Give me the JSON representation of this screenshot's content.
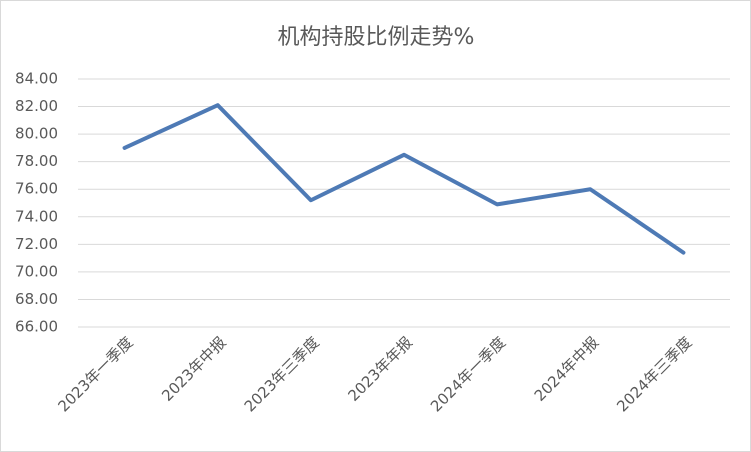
{
  "chart_data": {
    "type": "line",
    "title": "机构持股比例走势%",
    "categories": [
      "2023年一季度",
      "2023年中报",
      "2023年三季度",
      "2023年年报",
      "2024年一季度",
      "2024年中报",
      "2024年三季度"
    ],
    "series": [
      {
        "name": "机构持股比例",
        "color": "#4e7ab5",
        "values": [
          79.0,
          82.1,
          75.2,
          78.5,
          74.9,
          76.0,
          71.4
        ]
      }
    ],
    "ylim": [
      66,
      84
    ],
    "yticks": [
      {
        "value": 66,
        "label": "66.00"
      },
      {
        "value": 68,
        "label": "68.00"
      },
      {
        "value": 70,
        "label": "70.00"
      },
      {
        "value": 72,
        "label": "72.00"
      },
      {
        "value": 74,
        "label": "74.00"
      },
      {
        "value": 76,
        "label": "76.00"
      },
      {
        "value": 78,
        "label": "78.00"
      },
      {
        "value": 80,
        "label": "80.00"
      },
      {
        "value": 82,
        "label": "82.00"
      },
      {
        "value": 84,
        "label": "84.00"
      }
    ],
    "grid": true
  }
}
